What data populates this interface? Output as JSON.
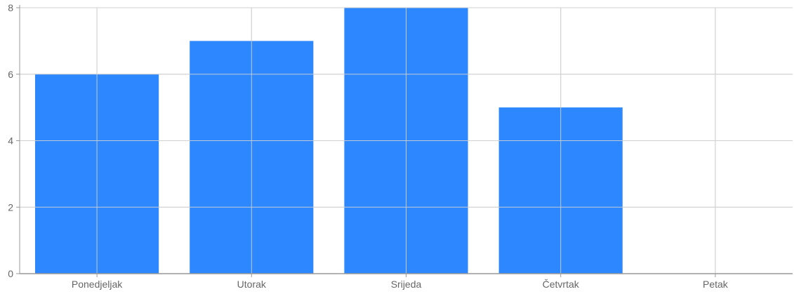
{
  "colors": {
    "bar": "#2d87ff",
    "grid": "#d0d0d0",
    "axis": "#999999",
    "tick_text": "#666666"
  },
  "chart_data": {
    "type": "bar",
    "categories": [
      "Ponedjeljak",
      "Utorak",
      "Srijeda",
      "Četvrtak",
      "Petak"
    ],
    "values": [
      6,
      7,
      8,
      5,
      0
    ],
    "yticks": [
      0,
      2,
      4,
      6,
      8
    ],
    "ylim": [
      0,
      8
    ],
    "grid": true,
    "legend": "none"
  }
}
